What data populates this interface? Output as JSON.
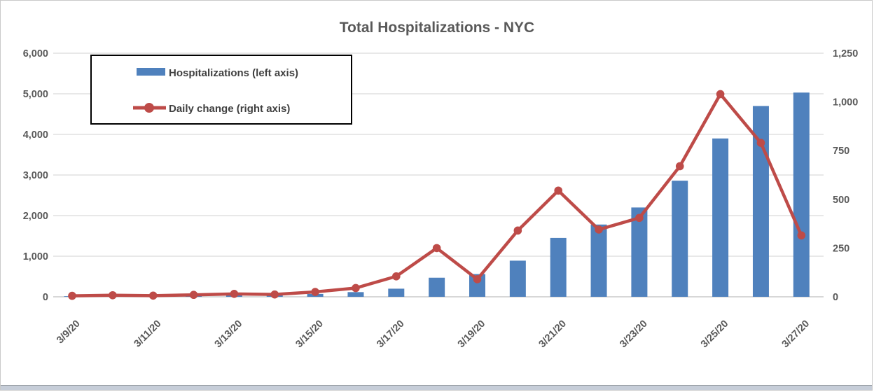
{
  "window": {
    "border_color": "#c9c9c9",
    "bottom_strip_color": "#c6cdd8"
  },
  "chart": {
    "colors": {
      "bar": "#4F81BD",
      "line": "#BE4B48",
      "marker": "#BE4B48",
      "text": "#595959",
      "grid": "#D9D9D9",
      "baseline": "#BFBFBF",
      "legend_border": "#000000",
      "background": "#FFFFFF"
    }
  },
  "chart_data": {
    "type": "bar",
    "subtype": "combo bar+line, dual axis",
    "title": "Total Hospitalizations - NYC",
    "x": [
      "3/9/20",
      "3/10/20",
      "3/11/20",
      "3/12/20",
      "3/13/20",
      "3/14/20",
      "3/15/20",
      "3/16/20",
      "3/17/20",
      "3/18/20",
      "3/19/20",
      "3/20/20",
      "3/21/20",
      "3/22/20",
      "3/23/20",
      "3/24/20",
      "3/25/20",
      "3/26/20",
      "3/27/20"
    ],
    "x_tick_labels_shown": [
      "3/9/20",
      "3/11/20",
      "3/13/20",
      "3/15/20",
      "3/17/20",
      "3/19/20",
      "3/21/20",
      "3/23/20",
      "3/25/20",
      "3/27/20"
    ],
    "series": [
      {
        "name": "Hospitalizations (left axis)",
        "type": "bar",
        "axis": "left",
        "color": "#4F81BD",
        "values": [
          15,
          20,
          25,
          30,
          35,
          45,
          70,
          115,
          200,
          470,
          560,
          890,
          1450,
          1780,
          2200,
          2860,
          3900,
          4700,
          5030
        ]
      },
      {
        "name": "Daily change (right axis)",
        "type": "line",
        "axis": "right",
        "color": "#BE4B48",
        "values": [
          5,
          8,
          6,
          10,
          15,
          12,
          25,
          45,
          105,
          250,
          90,
          340,
          545,
          345,
          405,
          670,
          1040,
          790,
          315
        ]
      }
    ],
    "left_axis": {
      "min": 0,
      "max": 6000,
      "step": 1000,
      "tick_labels": [
        "0",
        "1,000",
        "2,000",
        "3,000",
        "4,000",
        "5,000",
        "6,000"
      ]
    },
    "right_axis": {
      "min": 0,
      "max": 1250,
      "step": 250,
      "tick_labels": [
        "0",
        "250",
        "500",
        "750",
        "1,000",
        "1,250"
      ]
    },
    "grid": true,
    "legend": {
      "position": "top-left",
      "border": true
    }
  }
}
